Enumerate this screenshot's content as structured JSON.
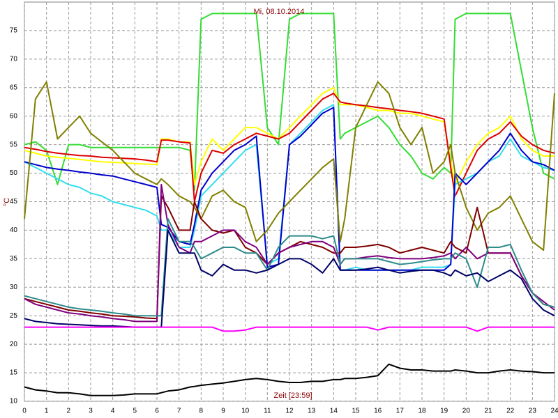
{
  "chart_data": {
    "type": "line",
    "title": "Mi, 08.10.2014",
    "x_label": "Zeit [23:59]",
    "y_label": "°C",
    "xlim": [
      0,
      24
    ],
    "ylim": [
      10,
      80
    ],
    "xticks": [
      0,
      1,
      2,
      3,
      4,
      5,
      6,
      7,
      8,
      9,
      10,
      11,
      12,
      13,
      14,
      15,
      16,
      17,
      18,
      19,
      20,
      21,
      22,
      23,
      24
    ],
    "yticks": [
      10,
      15,
      20,
      25,
      30,
      35,
      40,
      45,
      50,
      55,
      60,
      65,
      70,
      75
    ],
    "grid": true,
    "x": [
      0,
      0.5,
      1,
      1.5,
      2,
      2.5,
      3,
      3.5,
      4,
      4.5,
      5,
      5.5,
      6,
      6.2,
      6.5,
      7,
      7.5,
      7.7,
      8,
      8.5,
      9,
      9.5,
      10,
      10.5,
      11,
      11.5,
      12,
      12.5,
      13,
      13.5,
      14,
      14.3,
      14.5,
      15,
      15.5,
      16,
      16.5,
      17,
      17.5,
      18,
      18.5,
      19,
      19.3,
      19.5,
      20,
      20.5,
      21,
      21.5,
      22,
      22.5,
      23,
      23.5,
      24
    ],
    "series": [
      {
        "color": "#33dd33",
        "values": [
          55,
          55.5,
          54,
          48,
          55,
          55,
          54.5,
          54.5,
          54.5,
          54.5,
          54.5,
          54.5,
          54.5,
          54.5,
          54.5,
          54.5,
          54,
          47,
          77,
          78,
          78,
          78,
          78,
          78,
          58,
          55,
          77,
          78,
          78,
          78,
          78,
          56,
          57,
          58,
          59,
          60,
          58,
          55,
          53,
          50,
          49,
          51,
          50,
          77,
          78,
          78,
          78,
          78,
          78,
          68,
          58,
          50,
          49
        ]
      },
      {
        "color": "#ffff00",
        "values": [
          54,
          53.5,
          53,
          52.8,
          52.6,
          52.4,
          52.2,
          52,
          51.9,
          51.8,
          51.7,
          51.6,
          51.5,
          56,
          56,
          55.5,
          55.5,
          48,
          52,
          56,
          54,
          56,
          58,
          58,
          57,
          56,
          58,
          60,
          62,
          64,
          65,
          62,
          62,
          62,
          61.5,
          61,
          61,
          60.5,
          60.5,
          60,
          59.5,
          59,
          52,
          48,
          52,
          55,
          57,
          58,
          60,
          56,
          54,
          53,
          53
        ]
      },
      {
        "color": "#dd0000",
        "values": [
          54.5,
          54.2,
          53.8,
          53.5,
          53.3,
          53.1,
          53,
          52.8,
          52.7,
          52.6,
          52.5,
          52.3,
          52,
          55.8,
          55.8,
          55.5,
          55.3,
          45,
          50,
          54,
          53.5,
          55,
          56,
          57,
          56.5,
          56,
          57,
          59,
          61,
          63,
          64,
          62.5,
          62.3,
          62,
          61.8,
          61.5,
          61.3,
          61,
          60.8,
          60.5,
          60,
          59.5,
          51,
          46,
          50,
          54,
          56,
          57,
          59,
          56.5,
          55,
          54,
          53.5
        ]
      },
      {
        "color": "#33ddee",
        "values": [
          52,
          51,
          50,
          49,
          48,
          47.5,
          46.5,
          46,
          45,
          44.5,
          44,
          43.5,
          42.5,
          40,
          40,
          37,
          37,
          40,
          46,
          48,
          50,
          52,
          54,
          55,
          34,
          35,
          55,
          57,
          59,
          61,
          62,
          33,
          33,
          33.5,
          33,
          33,
          33,
          33,
          33,
          33.5,
          33.5,
          33.5,
          34,
          48,
          49,
          50,
          52,
          53,
          56,
          53,
          52,
          51,
          50.5
        ]
      },
      {
        "color": "#0000cc",
        "values": [
          52,
          51.5,
          51,
          50.7,
          50.5,
          50.2,
          50,
          49.7,
          49.5,
          49,
          48.5,
          48,
          47.5,
          41,
          40.5,
          38,
          37.5,
          41,
          47,
          50,
          52,
          54,
          55,
          56.5,
          33.5,
          34,
          55,
          56.5,
          58.5,
          60.5,
          61.5,
          33,
          33,
          33,
          33,
          33,
          33,
          33,
          33,
          33,
          33,
          33,
          34,
          50,
          48,
          50,
          52,
          54,
          57,
          54,
          52,
          51.5,
          50.5
        ]
      },
      {
        "color": "#808000",
        "values": [
          42,
          63,
          66,
          56,
          58,
          60,
          57,
          55.5,
          54,
          52,
          50,
          49,
          48,
          49,
          48,
          46,
          45,
          44,
          42,
          46,
          47,
          45,
          44,
          38,
          40,
          43,
          45,
          47,
          49,
          51,
          52.5,
          38,
          42,
          58,
          62,
          66,
          64,
          58,
          55,
          58,
          50,
          52,
          55,
          50,
          44,
          40,
          43,
          44,
          46,
          42,
          38,
          36.5,
          64
        ]
      },
      {
        "color": "#800000",
        "values": [
          28,
          27.5,
          27,
          26.5,
          26,
          25.8,
          25.5,
          25.3,
          25,
          24.9,
          24.8,
          24.6,
          24.5,
          46,
          44,
          40,
          40,
          45,
          42,
          40,
          39.5,
          40,
          37,
          36,
          34,
          36,
          37,
          38,
          37.5,
          37,
          36,
          36,
          37,
          37,
          37.2,
          37.5,
          37,
          36,
          36.5,
          37,
          36.5,
          36,
          38,
          37,
          36,
          44,
          36,
          36,
          36,
          32,
          29,
          27,
          26.5
        ]
      },
      {
        "color": "#800080",
        "values": [
          28,
          27,
          26.5,
          26,
          25.5,
          25.3,
          25,
          24.8,
          24.5,
          24.3,
          24,
          24,
          24,
          48,
          41,
          37,
          36,
          38,
          38,
          39,
          40,
          40,
          38,
          37,
          34,
          36,
          37,
          37.5,
          38,
          38,
          37,
          34,
          35,
          35,
          35.3,
          35.5,
          35.2,
          35,
          35,
          35,
          35.2,
          35.5,
          36,
          35,
          37,
          35,
          36,
          36,
          36,
          32,
          29,
          27.5,
          26
        ]
      },
      {
        "color": "#2e8b8b",
        "values": [
          28.5,
          28,
          27.5,
          27,
          26.5,
          26.2,
          26,
          25.8,
          25.5,
          25.3,
          25,
          25,
          25,
          25,
          42,
          38,
          38,
          37,
          35,
          36,
          37,
          37,
          36,
          36,
          33,
          37,
          39,
          39,
          39,
          38.5,
          39,
          34,
          35,
          35,
          35,
          35,
          34.5,
          34,
          34.2,
          34.5,
          34.8,
          35,
          35,
          36,
          35,
          30,
          37,
          37,
          37.5,
          33,
          29,
          27,
          26.5
        ]
      },
      {
        "color": "#000066",
        "values": [
          24.5,
          24,
          23.8,
          23.6,
          23.5,
          23.4,
          23.3,
          23.2,
          23.2,
          23.1,
          23,
          23,
          23,
          23,
          40,
          36,
          36,
          36,
          33,
          32,
          34,
          33,
          33,
          32.5,
          33,
          34,
          35,
          35,
          34,
          32.5,
          35,
          33,
          33,
          33,
          33.2,
          33.5,
          33,
          32.5,
          32.8,
          33,
          33,
          32.5,
          32,
          33,
          32,
          32.5,
          31,
          32,
          33,
          31.5,
          28,
          26,
          25
        ]
      },
      {
        "color": "#ff00ff",
        "values": [
          23,
          23,
          23,
          23,
          23,
          23,
          23,
          23,
          23,
          23,
          23,
          23,
          23,
          23,
          23,
          23,
          23,
          23,
          23,
          23,
          22.3,
          22.3,
          22.5,
          23,
          23,
          23,
          23,
          23,
          23,
          23,
          23,
          23,
          23,
          23,
          23,
          22.5,
          23,
          23,
          23,
          23,
          23,
          23,
          23,
          23,
          23,
          22.3,
          23,
          23,
          23,
          23,
          23,
          23,
          23
        ]
      },
      {
        "color": "#000000",
        "values": [
          12.5,
          12,
          11.8,
          11.5,
          11.5,
          11.3,
          11,
          11,
          11,
          11.1,
          11.3,
          11.3,
          11.3,
          11.5,
          11.8,
          12,
          12.5,
          12.6,
          12.8,
          13,
          13.2,
          13.5,
          13.8,
          14,
          13.8,
          13.5,
          13.3,
          13.3,
          13.5,
          13.5,
          13.8,
          13.8,
          14,
          14,
          14.2,
          14.5,
          16.5,
          15.8,
          15.5,
          15.5,
          15.3,
          15.3,
          15.3,
          15.5,
          15.3,
          15,
          15,
          15.3,
          15.5,
          15.3,
          15.2,
          15,
          15
        ]
      }
    ]
  }
}
